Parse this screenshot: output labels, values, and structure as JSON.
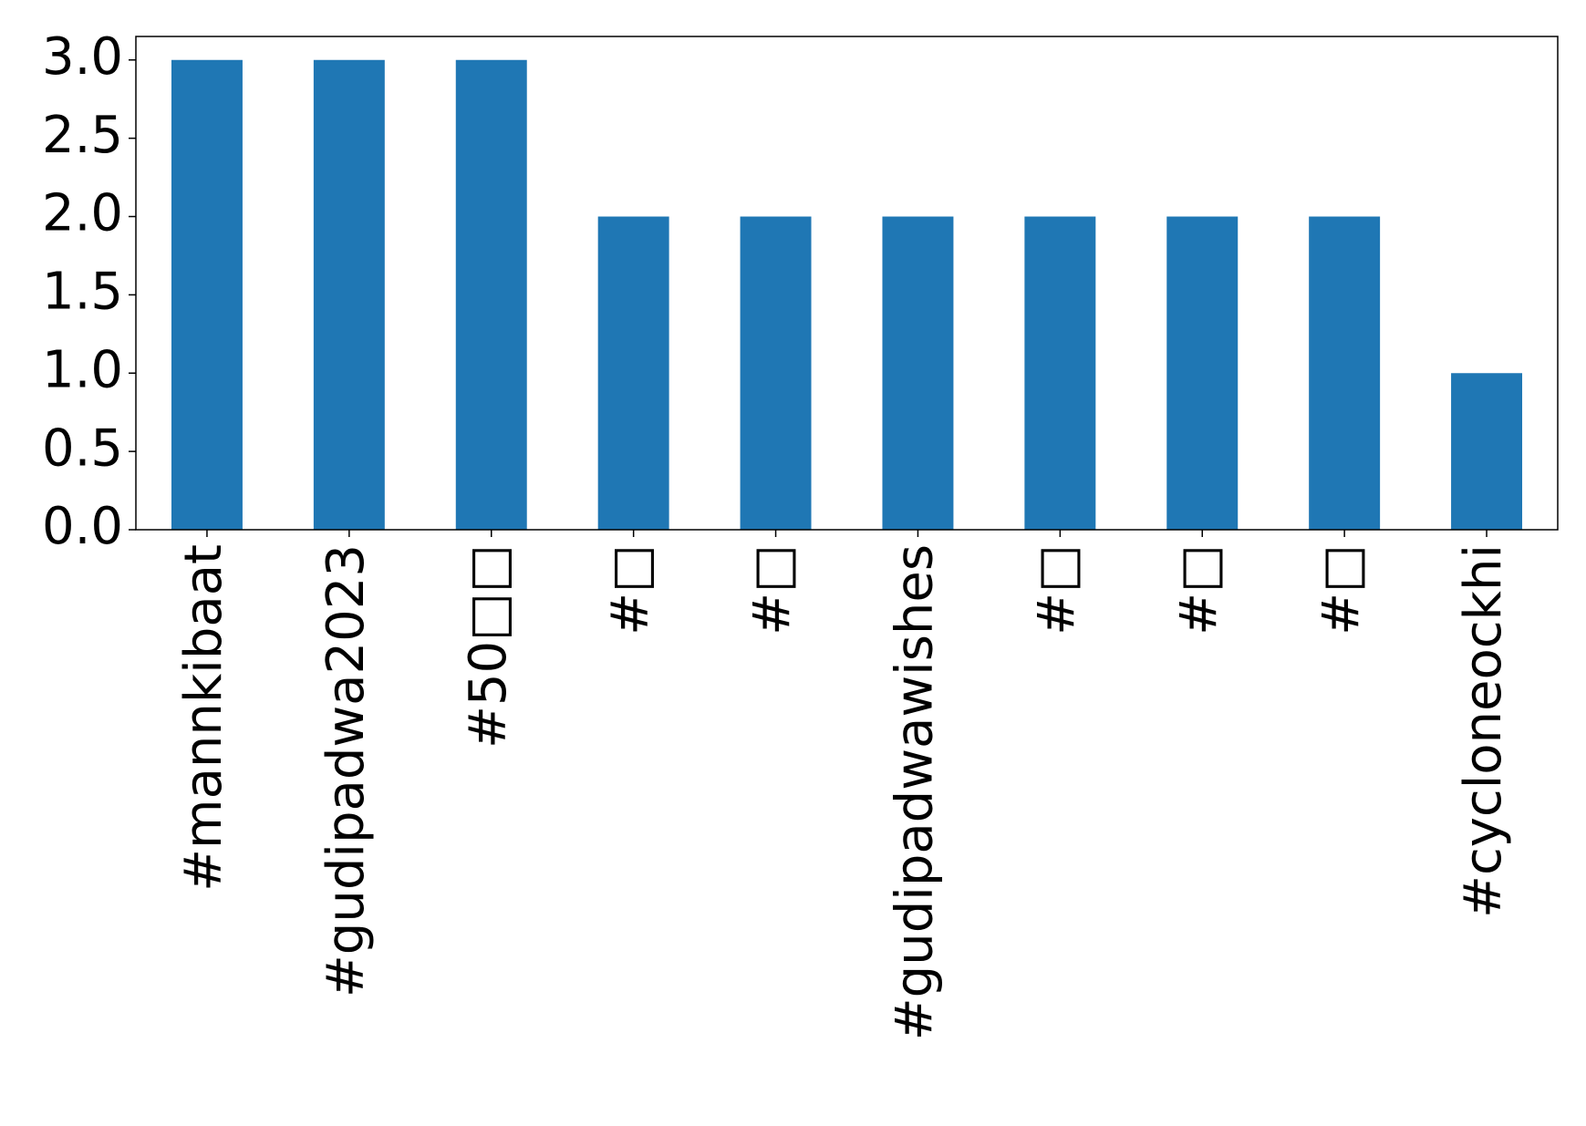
{
  "chart_data": {
    "type": "bar",
    "categories": [
      "#mannkibaat",
      "#gudipadwa2023",
      "#50□□",
      "#□",
      "#□",
      "#gudipadwawishes",
      "#□",
      "#□",
      "#□",
      "#cycloneockhi"
    ],
    "values": [
      3,
      3,
      3,
      2,
      2,
      2,
      2,
      2,
      2,
      1
    ],
    "color": "#1f77b4",
    "ylim": [
      0,
      3.15
    ],
    "yticks": [
      {
        "value": 0,
        "label": "0.0"
      },
      0.5,
      {
        "value": 1,
        "label": "1.0"
      },
      1.5,
      {
        "value": 2,
        "label": "2.0"
      },
      2.5,
      {
        "value": 3,
        "label": "3.0"
      }
    ],
    "grid": false
  }
}
